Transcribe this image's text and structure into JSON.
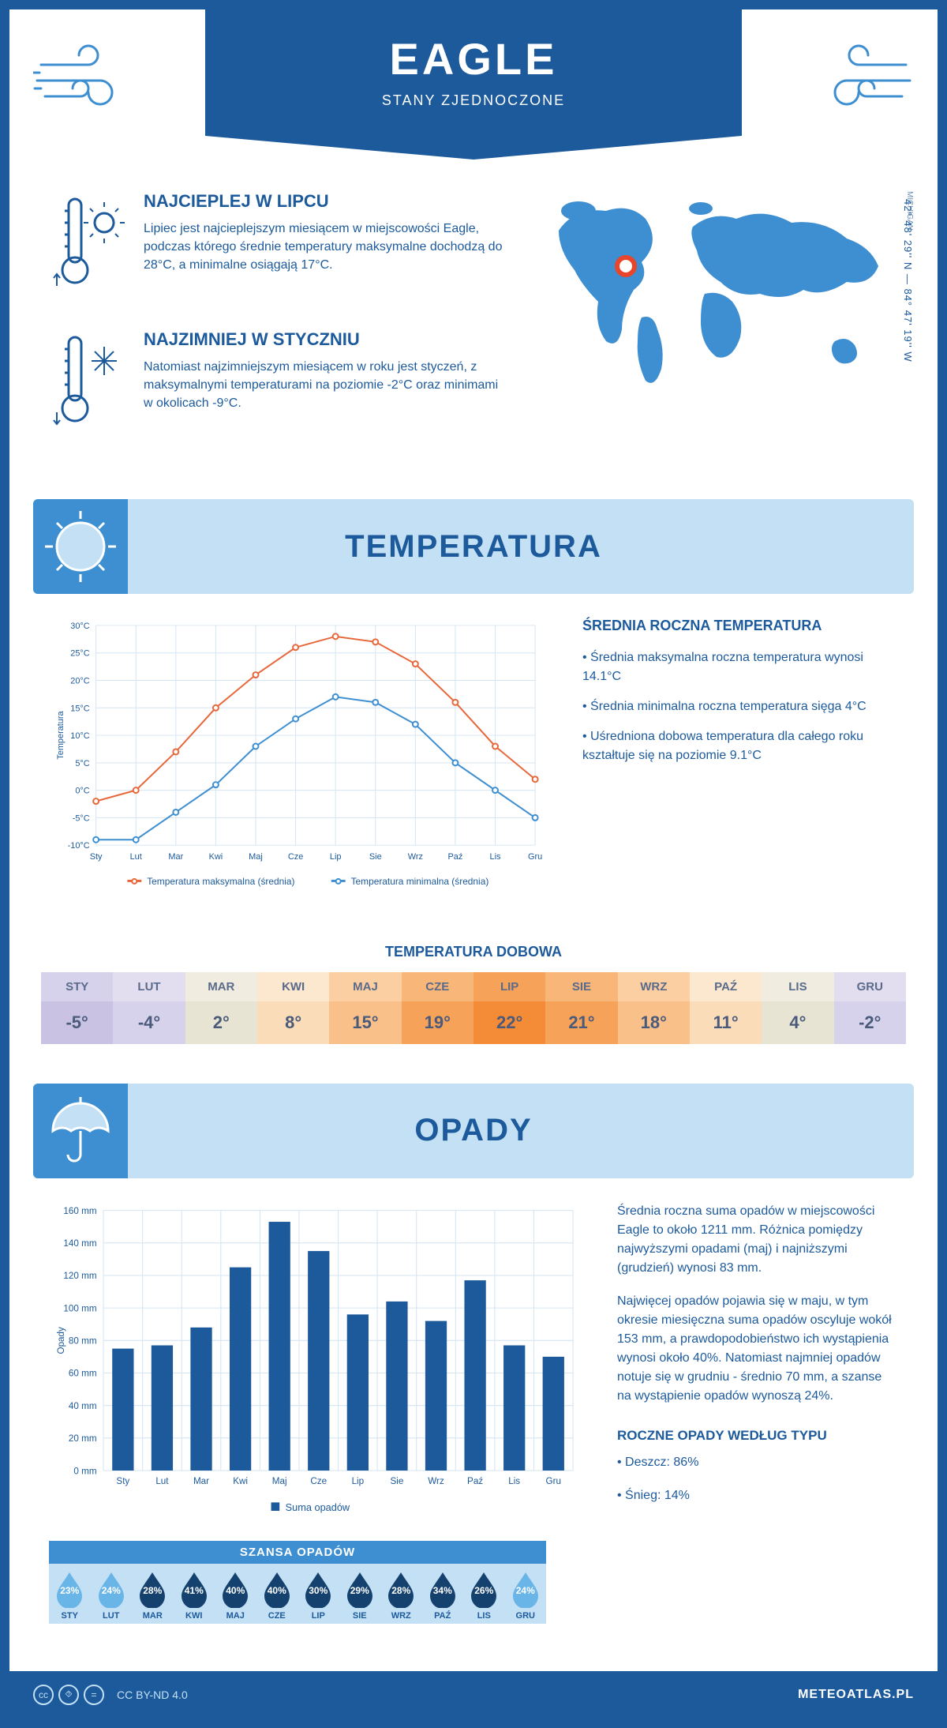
{
  "header": {
    "title": "EAGLE",
    "subtitle": "STANY ZJEDNOCZONE"
  },
  "location": {
    "region": "MICHIGAN",
    "coords": "42° 48' 29'' N — 84° 47' 19'' W"
  },
  "hot": {
    "title": "NAJCIEPLEJ W LIPCU",
    "text": "Lipiec jest najcieplejszym miesiącem w miejscowości Eagle, podczas którego średnie temperatury maksymalne dochodzą do 28°C, a minimalne osiągają 17°C."
  },
  "cold": {
    "title": "NAJZIMNIEJ W STYCZNIU",
    "text": "Natomiast najzimniejszym miesiącem w roku jest styczeń, z maksymalnymi temperaturami na poziomie -2°C oraz minimami w okolicach -9°C."
  },
  "temp_section": {
    "title": "TEMPERATURA"
  },
  "temp_chart": {
    "type": "line",
    "months": [
      "Sty",
      "Lut",
      "Mar",
      "Kwi",
      "Maj",
      "Cze",
      "Lip",
      "Sie",
      "Wrz",
      "Paź",
      "Lis",
      "Gru"
    ],
    "max_values": [
      -2,
      0,
      7,
      15,
      21,
      26,
      28,
      27,
      23,
      16,
      8,
      2
    ],
    "min_values": [
      -9,
      -9,
      -4,
      1,
      8,
      13,
      17,
      16,
      12,
      5,
      0,
      -5
    ],
    "max_color": "#e8673a",
    "min_color": "#3d8fd1",
    "ylabel": "Temperatura",
    "ylim": [
      -10,
      30
    ],
    "ytick_step": 5,
    "ytick_suffix": "°C",
    "grid_color": "#d5e5f2",
    "legend_max": "Temperatura maksymalna (średnia)",
    "legend_min": "Temperatura minimalna (średnia)",
    "marker": "circle",
    "line_width": 2
  },
  "temp_side": {
    "heading": "ŚREDNIA ROCZNA TEMPERATURA",
    "bullets": [
      "• Średnia maksymalna roczna temperatura wynosi 14.1°C",
      "• Średnia minimalna roczna temperatura sięga 4°C",
      "• Uśredniona dobowa temperatura dla całego roku kształtuje się na poziomie 9.1°C"
    ]
  },
  "daily_strip": {
    "title": "TEMPERATURA DOBOWA",
    "months": [
      "STY",
      "LUT",
      "MAR",
      "KWI",
      "MAJ",
      "CZE",
      "LIP",
      "SIE",
      "WRZ",
      "PAŹ",
      "LIS",
      "GRU"
    ],
    "values": [
      "-5°",
      "-4°",
      "2°",
      "8°",
      "15°",
      "19°",
      "22°",
      "21°",
      "18°",
      "11°",
      "4°",
      "-2°"
    ],
    "head_colors": [
      "#d7d2ec",
      "#e2def0",
      "#f0ede0",
      "#fce7cf",
      "#fbcfa1",
      "#f9b679",
      "#f7a259",
      "#f9b679",
      "#fbcfa1",
      "#fce7cf",
      "#f0ede0",
      "#e2def0"
    ],
    "body_colors": [
      "#c9c2e3",
      "#d7d2ec",
      "#e8e4d3",
      "#fbdcb9",
      "#f9c089",
      "#f7a259",
      "#f48b36",
      "#f7a259",
      "#f9c089",
      "#fbdcb9",
      "#e8e4d3",
      "#d7d2ec"
    ]
  },
  "precip_section": {
    "title": "OPADY"
  },
  "precip_chart": {
    "type": "bar",
    "months": [
      "Sty",
      "Lut",
      "Mar",
      "Kwi",
      "Maj",
      "Cze",
      "Lip",
      "Sie",
      "Wrz",
      "Paź",
      "Lis",
      "Gru"
    ],
    "values": [
      75,
      77,
      88,
      125,
      153,
      135,
      96,
      104,
      92,
      117,
      77,
      70
    ],
    "bar_color": "#1c5a9c",
    "ylabel": "Opady",
    "ylim": [
      0,
      160
    ],
    "ytick_step": 20,
    "ytick_suffix": " mm",
    "grid_color": "#d5e5f2",
    "legend": "Suma opadów",
    "bar_width": 0.55
  },
  "precip_text": {
    "p1": "Średnia roczna suma opadów w miejscowości Eagle to około 1211 mm. Różnica pomiędzy najwyższymi opadami (maj) i najniższymi (grudzień) wynosi 83 mm.",
    "p2": "Najwięcej opadów pojawia się w maju, w tym okresie miesięczna suma opadów oscyluje wokół 153 mm, a prawdopodobieństwo ich wystąpienia wynosi około 40%. Natomiast najmniej opadów notuje się w grudniu - średnio 70 mm, a szanse na wystąpienie opadów wynoszą 24%.",
    "type_heading": "ROCZNE OPADY WEDŁUG TYPU",
    "type_rain": "• Deszcz: 86%",
    "type_snow": "• Śnieg: 14%"
  },
  "chance": {
    "title": "SZANSA OPADÓW",
    "months": [
      "STY",
      "LUT",
      "MAR",
      "KWI",
      "MAJ",
      "CZE",
      "LIP",
      "SIE",
      "WRZ",
      "PAŹ",
      "LIS",
      "GRU"
    ],
    "values": [
      23,
      24,
      28,
      41,
      40,
      40,
      30,
      29,
      28,
      34,
      26,
      24
    ],
    "light_color": "#6ab5e8",
    "dark_color": "#14416e",
    "threshold": 25
  },
  "footer": {
    "license": "CC BY-ND 4.0",
    "brand": "METEOATLAS.PL"
  },
  "colors": {
    "primary": "#1c5a9c",
    "light_blue": "#c3e0f5",
    "mid_blue": "#3d8fd1"
  }
}
